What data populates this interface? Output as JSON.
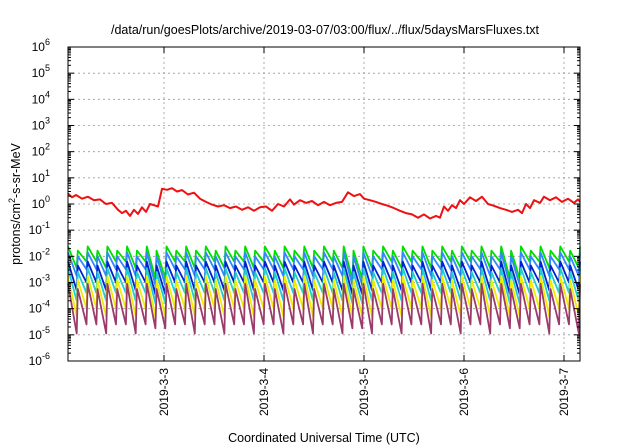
{
  "chart_data": {
    "type": "line",
    "title": "/data/run/goesPlots/archive/2019-03-07/03:00/flux/../flux/5daysMarsFluxes.txt",
    "xlabel": "Coordinated Universal Time (UTC)",
    "ylabel": {
      "prefix": "protons/cm",
      "sup": "2",
      "suffix": "-s-sr-MeV"
    },
    "x_axis": {
      "unit": "days since 2019-03-02 00:00 UTC",
      "range": [
        0.04,
        5.16
      ],
      "tick_values": [
        1,
        2,
        3,
        4,
        5
      ],
      "tick_labels": [
        "2019-3-3",
        "2019-3-4",
        "2019-3-5",
        "2019-3-6",
        "2019-3-7"
      ]
    },
    "y_axis": {
      "scale": "log",
      "range_exponents": [
        -6,
        6
      ],
      "tick_exponents": [
        -6,
        -5,
        -4,
        -3,
        -2,
        -1,
        0,
        1,
        2,
        3,
        4,
        5,
        6
      ],
      "tick_labels": [
        "10",
        "10",
        "10",
        "10",
        "10",
        "10",
        "10",
        "10",
        "10",
        "10",
        "10",
        "10",
        "10"
      ],
      "tick_sups": [
        "-6",
        "-5",
        "-4",
        "-3",
        "-2",
        "-1",
        "0",
        "1",
        "2",
        "3",
        "4",
        "5",
        "6"
      ]
    },
    "grid": true,
    "legend": "none",
    "series": [
      {
        "color": "#ee1111",
        "kind": "explicit",
        "points": [
          [
            0.04,
            2.5
          ],
          [
            0.08,
            1.8
          ],
          [
            0.12,
            2.2
          ],
          [
            0.18,
            1.6
          ],
          [
            0.24,
            1.9
          ],
          [
            0.3,
            1.4
          ],
          [
            0.36,
            1.5
          ],
          [
            0.42,
            1.0
          ],
          [
            0.48,
            1.1
          ],
          [
            0.54,
            0.6
          ],
          [
            0.58,
            0.45
          ],
          [
            0.62,
            0.55
          ],
          [
            0.66,
            0.35
          ],
          [
            0.7,
            0.6
          ],
          [
            0.74,
            0.42
          ],
          [
            0.78,
            0.75
          ],
          [
            0.82,
            0.5
          ],
          [
            0.86,
            1.0
          ],
          [
            0.9,
            0.9
          ],
          [
            0.94,
            0.8
          ],
          [
            0.98,
            3.8
          ],
          [
            1.03,
            3.5
          ],
          [
            1.08,
            4.0
          ],
          [
            1.13,
            3.0
          ],
          [
            1.18,
            3.4
          ],
          [
            1.24,
            2.3
          ],
          [
            1.3,
            2.7
          ],
          [
            1.36,
            1.6
          ],
          [
            1.42,
            1.2
          ],
          [
            1.48,
            0.95
          ],
          [
            1.54,
            0.8
          ],
          [
            1.6,
            0.9
          ],
          [
            1.66,
            0.7
          ],
          [
            1.72,
            0.8
          ],
          [
            1.78,
            0.6
          ],
          [
            1.84,
            0.75
          ],
          [
            1.9,
            0.55
          ],
          [
            1.96,
            0.75
          ],
          [
            2.02,
            0.8
          ],
          [
            2.08,
            0.55
          ],
          [
            2.14,
            1.0
          ],
          [
            2.2,
            0.8
          ],
          [
            2.26,
            1.5
          ],
          [
            2.3,
            0.95
          ],
          [
            2.36,
            1.4
          ],
          [
            2.42,
            1.1
          ],
          [
            2.48,
            1.3
          ],
          [
            2.54,
            0.9
          ],
          [
            2.6,
            1.2
          ],
          [
            2.66,
            0.9
          ],
          [
            2.72,
            1.1
          ],
          [
            2.78,
            1.2
          ],
          [
            2.84,
            2.8
          ],
          [
            2.9,
            2.0
          ],
          [
            2.96,
            2.4
          ],
          [
            3.0,
            1.6
          ],
          [
            3.06,
            1.4
          ],
          [
            3.12,
            1.2
          ],
          [
            3.18,
            1.0
          ],
          [
            3.24,
            0.85
          ],
          [
            3.3,
            0.7
          ],
          [
            3.36,
            0.55
          ],
          [
            3.42,
            0.45
          ],
          [
            3.48,
            0.4
          ],
          [
            3.54,
            0.3
          ],
          [
            3.6,
            0.4
          ],
          [
            3.66,
            0.28
          ],
          [
            3.72,
            0.35
          ],
          [
            3.76,
            0.3
          ],
          [
            3.8,
            0.8
          ],
          [
            3.84,
            0.55
          ],
          [
            3.88,
            0.9
          ],
          [
            3.92,
            0.7
          ],
          [
            3.96,
            1.4
          ],
          [
            4.0,
            1.0
          ],
          [
            4.06,
            1.8
          ],
          [
            4.12,
            1.3
          ],
          [
            4.18,
            1.9
          ],
          [
            4.24,
            1.0
          ],
          [
            4.3,
            0.85
          ],
          [
            4.36,
            0.7
          ],
          [
            4.42,
            0.6
          ],
          [
            4.48,
            0.5
          ],
          [
            4.54,
            0.6
          ],
          [
            4.58,
            0.45
          ],
          [
            4.62,
            1.0
          ],
          [
            4.66,
            0.7
          ],
          [
            4.7,
            1.4
          ],
          [
            4.76,
            1.1
          ],
          [
            4.8,
            1.9
          ],
          [
            4.86,
            1.4
          ],
          [
            4.92,
            1.8
          ],
          [
            4.98,
            1.2
          ],
          [
            5.04,
            1.6
          ],
          [
            5.1,
            1.1
          ],
          [
            5.14,
            1.5
          ],
          [
            5.16,
            1.2
          ]
        ]
      },
      {
        "color": "#00dd00",
        "kind": "sawtooth",
        "cycles": 52,
        "high_exponents": [
          -1.62,
          -1.78
        ],
        "low_exponents": [
          -2.2,
          -2.45
        ],
        "step": {
          "at": [
            1.0,
            2.97,
            4.5
          ],
          "low_exponent": -2.85
        }
      },
      {
        "color": "#3388ff",
        "kind": "sawtooth",
        "cycles": 52,
        "high_exponents": [
          -1.85,
          -2.0
        ],
        "low_exponents": [
          -2.5,
          -2.75
        ],
        "step": {
          "at": [
            1.0,
            2.97,
            4.5
          ],
          "low_exponent": -3.1
        }
      },
      {
        "color": "#0022cc",
        "kind": "sawtooth",
        "cycles": 52,
        "high_exponents": [
          -2.2,
          -2.35
        ],
        "low_exponents": [
          -3.0,
          -3.3
        ],
        "step": {
          "at": [
            1.0,
            2.97,
            4.5
          ],
          "low_exponent": -3.45
        }
      },
      {
        "color": "#22cccc",
        "kind": "sawtooth",
        "cycles": 52,
        "high_exponents": [
          -2.45,
          -2.6
        ],
        "low_exponents": [
          -3.4,
          -3.7
        ],
        "step": {
          "at": [
            1.0,
            2.97,
            4.5
          ],
          "low_exponent": -3.8
        }
      },
      {
        "color": "#eeee00",
        "kind": "sawtooth",
        "cycles": 52,
        "high_exponents": [
          -2.75,
          -2.9
        ],
        "low_exponents": [
          -4.0,
          -4.3
        ],
        "step": {
          "at": [
            1.0,
            2.97,
            4.5
          ],
          "low_exponent": -4.3
        }
      },
      {
        "color": "#9b3b6b",
        "kind": "sawtooth",
        "cycles": 52,
        "high_exponents": [
          -3.05,
          -3.25
        ],
        "low_exponents": [
          -4.6,
          -4.95
        ],
        "step": {
          "at": [
            1.0,
            2.97,
            4.5
          ],
          "low_exponent": -4.75
        }
      }
    ]
  }
}
